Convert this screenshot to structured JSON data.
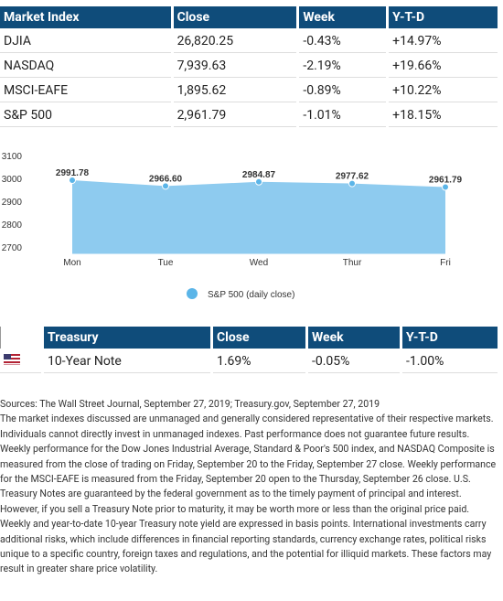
{
  "market_table": {
    "header": [
      "Market Index",
      "Close",
      "Week",
      "Y-T-D"
    ],
    "rows": [
      [
        "DJIA",
        "26,820.25",
        "-0.43%",
        "+14.97%"
      ],
      [
        "NASDAQ",
        "7,939.63",
        "-2.19%",
        "+19.66%"
      ],
      [
        "MSCI-EAFE",
        "1,895.62",
        "-0.89%",
        "+10.22%"
      ],
      [
        "S&P 500",
        "2,961.79",
        "-1.01%",
        "+18.15%"
      ]
    ]
  },
  "chart_data": {
    "type": "area",
    "categories": [
      "Mon",
      "Tue",
      "Wed",
      "Thur",
      "Fri"
    ],
    "series": [
      {
        "name": "S&P 500 (daily close)",
        "color": "#8ecbef",
        "values": [
          2991.78,
          2966.6,
          2984.87,
          2977.62,
          2961.79
        ],
        "value_labels": [
          "2991.78",
          "2966.60",
          "2984.87",
          "2977.62",
          "2961.79"
        ]
      }
    ],
    "ylim": [
      2670,
      3100
    ],
    "yticks": [
      2700,
      2800,
      2900,
      3000,
      3100
    ],
    "grid": false,
    "legend": "bottom"
  },
  "treasury_table": {
    "header": [
      "Treasury",
      "Close",
      "Week",
      "Y-T-D"
    ],
    "rows": [
      [
        "10-Year Note",
        "1.69%",
        "-0.05%",
        "-1.00%"
      ]
    ]
  },
  "notes": [
    "Sources: The Wall Street Journal, September 27, 2019; Treasury.gov, September 27, 2019",
    "The market indexes discussed are unmanaged and generally considered representative of their respective markets. Individuals cannot directly invest in unmanaged indexes. Past performance does not guarantee future results. Weekly performance for the Dow Jones Industrial Average, Standard & Poor's 500 index, and NASDAQ Composite is measured from the close of trading on Friday, September 20 to the Friday, September 27 close. Weekly performance for the MSCI-EAFE is measured from the Friday, September 20 open to the Thursday, September 26 close. U.S. Treasury Notes are guaranteed by the federal government as to the timely payment of principal and interest. However, if you sell a Treasury Note prior to maturity, it may be worth more or less than the original price paid. Weekly and year-to-date 10-year Treasury note yield are expressed in basis points. International investments carry additional risks, which include differences in financial reporting standards, currency exchange rates, political risks unique to a specific country, foreign taxes and regulations, and the potential for illiquid markets. These factors may result in greater share price volatility."
  ]
}
